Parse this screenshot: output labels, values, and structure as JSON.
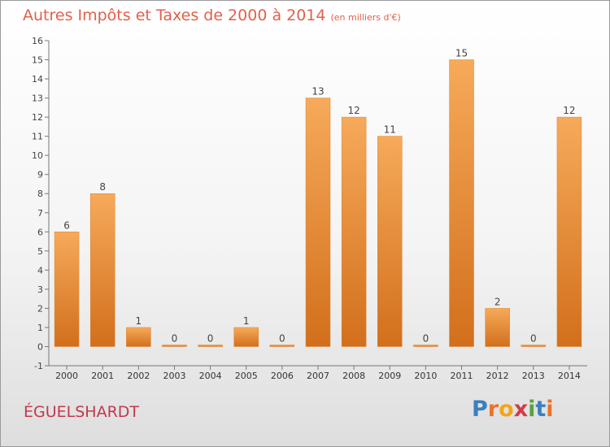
{
  "title": {
    "main": "Autres Impôts et Taxes de 2000 à 2014",
    "unit": "(en milliers d'€)"
  },
  "location": "ÉGUELSHARDT",
  "logo": {
    "text": "Proxiti",
    "letters": [
      {
        "char": "P",
        "color": "#3a7fc0"
      },
      {
        "char": "r",
        "color": "#e8742a"
      },
      {
        "char": "o",
        "color": "#f2a516"
      },
      {
        "char": "x",
        "color": "#d23a4a"
      },
      {
        "char": "i",
        "color": "#5aa33a"
      },
      {
        "char": "t",
        "color": "#3a7fc0"
      },
      {
        "char": "i",
        "color": "#e8742a"
      }
    ]
  },
  "chart_data": {
    "type": "bar",
    "title": "Autres Impôts et Taxes de 2000 à 2014",
    "subtitle": "(en milliers d'€)",
    "xlabel": "",
    "ylabel": "",
    "categories": [
      "2000",
      "2001",
      "2002",
      "2003",
      "2004",
      "2005",
      "2006",
      "2007",
      "2008",
      "2009",
      "2010",
      "2011",
      "2012",
      "2013",
      "2014"
    ],
    "values": [
      6,
      8,
      1,
      0,
      0,
      1,
      0,
      13,
      12,
      11,
      0,
      15,
      2,
      0,
      12
    ],
    "ylim": [
      -1,
      16
    ],
    "yticks": [
      -1,
      0,
      1,
      2,
      3,
      4,
      5,
      6,
      7,
      8,
      9,
      10,
      11,
      12,
      13,
      14,
      15,
      16
    ],
    "grid": false,
    "bar_color": "#ef8f34",
    "bar_color_light": "#f6aa5a",
    "bar_color_dark": "#d26f1c"
  }
}
